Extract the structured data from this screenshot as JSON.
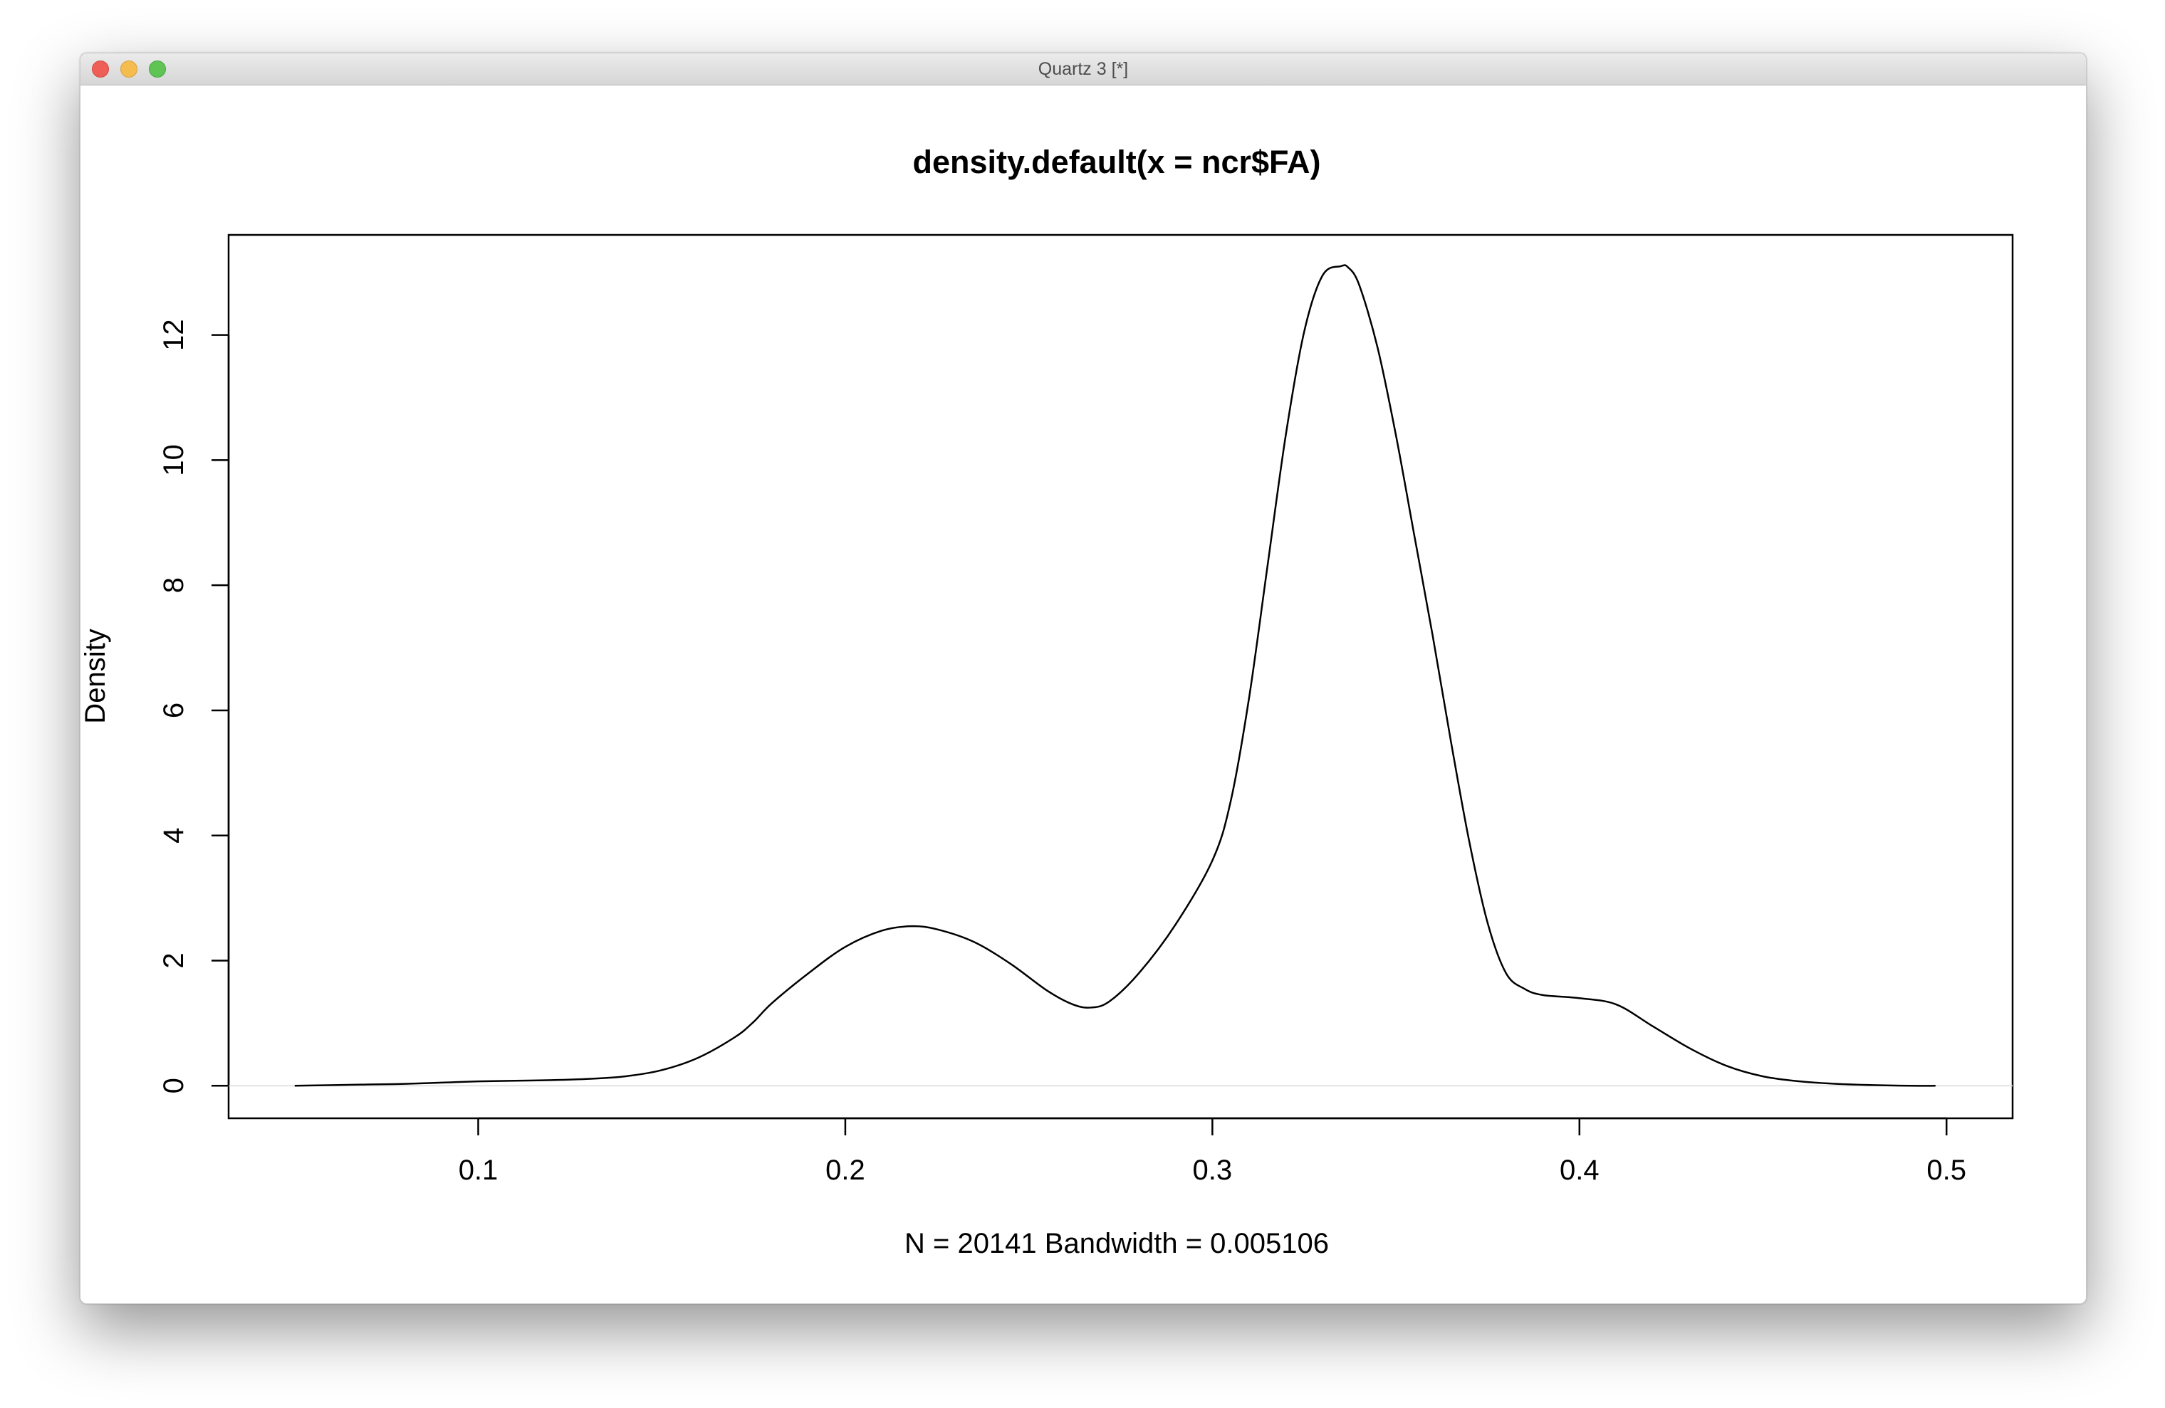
{
  "window": {
    "title": "Quartz 3 [*]",
    "controls": [
      "close",
      "minimize",
      "zoom"
    ]
  },
  "chart_data": {
    "type": "line",
    "title": "density.default(x = ncr$FA)",
    "xlabel": "N = 20141   Bandwidth = 0.005106",
    "ylabel": "Density",
    "xlim": [
      0.032,
      0.518
    ],
    "ylim": [
      -0.52,
      13.6
    ],
    "x_ticks": [
      {
        "value": 0.1,
        "label": "0.1"
      },
      {
        "value": 0.2,
        "label": "0.2"
      },
      {
        "value": 0.3,
        "label": "0.3"
      },
      {
        "value": 0.4,
        "label": "0.4"
      },
      {
        "value": 0.5,
        "label": "0.5"
      }
    ],
    "y_ticks": [
      {
        "value": 0,
        "label": "0"
      },
      {
        "value": 2,
        "label": "2"
      },
      {
        "value": 4,
        "label": "4"
      },
      {
        "value": 6,
        "label": "6"
      },
      {
        "value": 8,
        "label": "8"
      },
      {
        "value": 10,
        "label": "10"
      },
      {
        "value": 12,
        "label": "12"
      }
    ],
    "grid": false,
    "zero_baseline": true,
    "series": [
      {
        "x": [
          0.05,
          0.07,
          0.08,
          0.09,
          0.1,
          0.11,
          0.12,
          0.13,
          0.14,
          0.15,
          0.16,
          0.17,
          0.175,
          0.18,
          0.19,
          0.2,
          0.21,
          0.218,
          0.225,
          0.235,
          0.245,
          0.255,
          0.262,
          0.267,
          0.272,
          0.28,
          0.29,
          0.3,
          0.305,
          0.31,
          0.315,
          0.32,
          0.325,
          0.33,
          0.335,
          0.337,
          0.34,
          0.345,
          0.35,
          0.355,
          0.36,
          0.365,
          0.37,
          0.375,
          0.38,
          0.385,
          0.39,
          0.4,
          0.41,
          0.42,
          0.43,
          0.44,
          0.45,
          0.46,
          0.47,
          0.48,
          0.49,
          0.497
        ],
        "y": [
          0.0,
          0.02,
          0.03,
          0.05,
          0.07,
          0.08,
          0.09,
          0.11,
          0.15,
          0.25,
          0.45,
          0.78,
          1.02,
          1.32,
          1.8,
          2.22,
          2.48,
          2.55,
          2.5,
          2.3,
          1.95,
          1.52,
          1.3,
          1.25,
          1.35,
          1.8,
          2.58,
          3.6,
          4.55,
          6.2,
          8.3,
          10.4,
          12.05,
          12.95,
          13.1,
          13.08,
          12.8,
          11.8,
          10.4,
          8.8,
          7.2,
          5.5,
          3.9,
          2.6,
          1.8,
          1.55,
          1.45,
          1.4,
          1.3,
          0.95,
          0.6,
          0.32,
          0.15,
          0.07,
          0.03,
          0.01,
          0.0,
          0.0
        ]
      }
    ]
  }
}
